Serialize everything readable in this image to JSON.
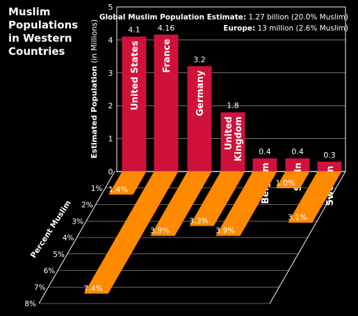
{
  "title_lines": [
    "Muslim",
    "Populations",
    "in Western",
    "Countries"
  ],
  "info": {
    "global_label": "Global Muslim Population Estimate:",
    "global_value": " 1.27 billion (20.0% Muslim)",
    "europe_label": "Europe:",
    "europe_value": " 13 million (2.6% Muslim)"
  },
  "colors": {
    "population_bar": "#d0123a",
    "percent_bar": "#ff8a00",
    "grid": "#ffffff",
    "background": "#000000"
  },
  "chart_data": [
    {
      "type": "bar",
      "categories": [
        "United States",
        "France",
        "Germany",
        "United Kingdom",
        "Belgium",
        "Spain",
        "Sweden"
      ],
      "category_label_lines": [
        [
          "United States"
        ],
        [
          "France"
        ],
        [
          "Germany"
        ],
        [
          "United",
          "Kingdom"
        ],
        [
          "Belgium"
        ],
        [
          "Spain"
        ],
        [
          "Sweden"
        ]
      ],
      "values": [
        4.1,
        4.16,
        3.2,
        1.8,
        0.4,
        0.4,
        0.3
      ],
      "value_labels": [
        "4.1",
        "4.16",
        "3.2",
        "1.8",
        "0.4",
        "0.4",
        "0.3"
      ],
      "ylabel": "Estimated Population",
      "ylabel_unit": "(in Millions)",
      "ylim": [
        0,
        5
      ],
      "yticks": [
        "0",
        "1",
        "2",
        "3",
        "4",
        "5"
      ],
      "grid": true
    },
    {
      "type": "bar",
      "categories": [
        "United States",
        "France",
        "Germany",
        "United Kingdom",
        "Belgium",
        "Spain",
        "Sweden"
      ],
      "values": [
        1.4,
        7.4,
        3.9,
        3.3,
        3.9,
        1.0,
        3.1
      ],
      "value_labels": [
        "1.4%",
        "7.4%",
        "3.9%",
        "3.3%",
        "3.9%",
        "1.0%",
        "3.1%"
      ],
      "ylabel": "Percent Muslim",
      "ylim": [
        0,
        8
      ],
      "yticks": [
        "1%",
        "2%",
        "3%",
        "4%",
        "5%",
        "6%",
        "7%",
        "8%"
      ],
      "grid": true
    }
  ]
}
